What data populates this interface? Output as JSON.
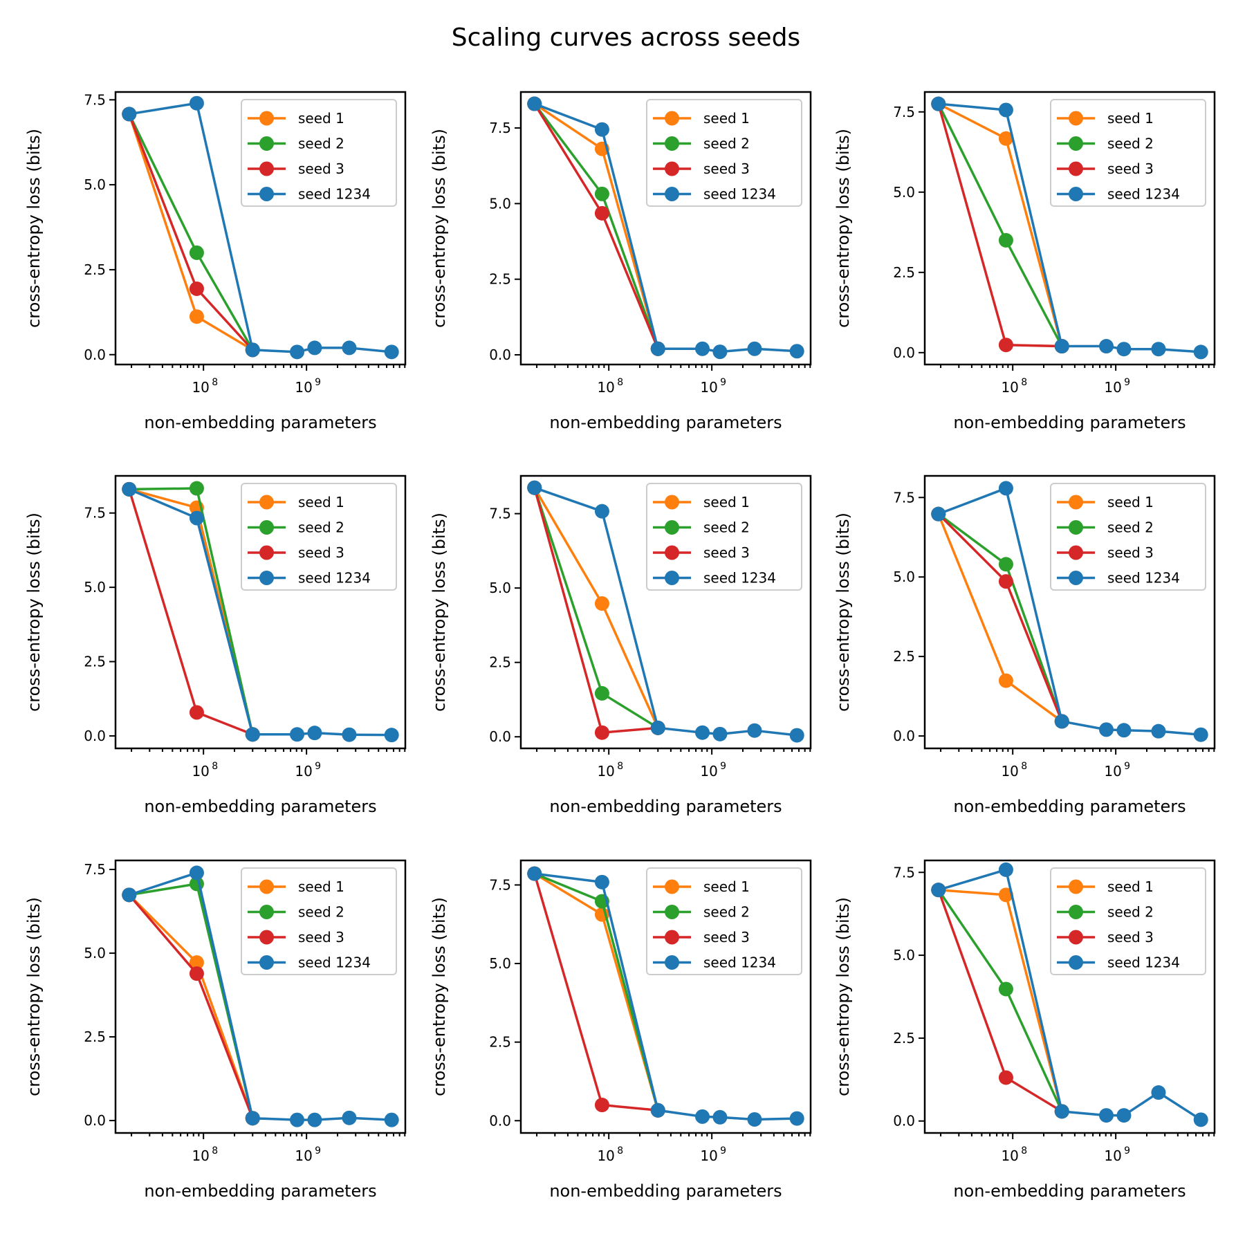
{
  "chart_data": {
    "type": "line",
    "title": "Scaling curves across seeds",
    "layout": "3x3 grid",
    "xscale": "log",
    "xlabel": "non-embedding parameters",
    "ylabel": "cross-entropy loss (bits)",
    "xlim": [
      14000000.0,
      9100000000.0
    ],
    "xtick_labels": [
      {
        "value": 100000000.0,
        "base": "10",
        "exp": "8"
      },
      {
        "value": 1000000000.0,
        "base": "10",
        "exp": "9"
      }
    ],
    "yticks": [
      0.0,
      2.5,
      5.0,
      7.5
    ],
    "ytick_labels": [
      "0.0",
      "2.5",
      "5.0",
      "7.5"
    ],
    "legend": {
      "placement": "upper right",
      "entries": [
        "seed 1",
        "seed 2",
        "seed 3",
        "seed 1234"
      ]
    },
    "colors": {
      "seed 1": "#ff7f0e",
      "seed 2": "#2ca02c",
      "seed 3": "#d62728",
      "seed 1234": "#1f77b4"
    },
    "x": [
      19000000.0,
      86000000.0,
      300000000.0,
      810000000.0,
      1200000000.0,
      2600000000.0,
      6700000000.0
    ],
    "subplots": [
      {
        "ylim": [
          -0.29,
          7.73
        ],
        "series": [
          {
            "name": "seed 1",
            "x_index": [
              0,
              1,
              2
            ],
            "values": [
              7.08,
              1.12,
              0.14
            ]
          },
          {
            "name": "seed 2",
            "x_index": [
              0,
              1,
              2
            ],
            "values": [
              7.08,
              3.0,
              0.14
            ]
          },
          {
            "name": "seed 3",
            "x_index": [
              0,
              1,
              2
            ],
            "values": [
              7.08,
              1.94,
              0.14
            ]
          },
          {
            "name": "seed 1234",
            "x_index": [
              0,
              1,
              2,
              3,
              4,
              5,
              6
            ],
            "values": [
              7.08,
              7.4,
              0.14,
              0.08,
              0.2,
              0.2,
              0.08
            ]
          }
        ]
      },
      {
        "ylim": [
          -0.32,
          8.69
        ],
        "series": [
          {
            "name": "seed 1",
            "x_index": [
              0,
              1,
              2
            ],
            "values": [
              8.3,
              6.81,
              0.2
            ]
          },
          {
            "name": "seed 2",
            "x_index": [
              0,
              1,
              2
            ],
            "values": [
              8.3,
              5.32,
              0.2
            ]
          },
          {
            "name": "seed 3",
            "x_index": [
              0,
              1,
              2
            ],
            "values": [
              8.3,
              4.68,
              0.2
            ]
          },
          {
            "name": "seed 1234",
            "x_index": [
              0,
              1,
              2,
              3,
              4,
              5,
              6
            ],
            "values": [
              8.3,
              7.45,
              0.2,
              0.2,
              0.1,
              0.2,
              0.12
            ]
          }
        ]
      },
      {
        "ylim": [
          -0.37,
          8.12
        ],
        "series": [
          {
            "name": "seed 1",
            "x_index": [
              0,
              1,
              2
            ],
            "values": [
              7.75,
              6.67,
              0.2
            ]
          },
          {
            "name": "seed 2",
            "x_index": [
              0,
              1,
              2
            ],
            "values": [
              7.75,
              3.5,
              0.2
            ]
          },
          {
            "name": "seed 3",
            "x_index": [
              0,
              1,
              2
            ],
            "values": [
              7.75,
              0.24,
              0.2
            ]
          },
          {
            "name": "seed 1234",
            "x_index": [
              0,
              1,
              2,
              3,
              4,
              5,
              6
            ],
            "values": [
              7.75,
              7.56,
              0.2,
              0.2,
              0.11,
              0.11,
              0.02
            ]
          }
        ]
      },
      {
        "ylim": [
          -0.42,
          8.75
        ],
        "series": [
          {
            "name": "seed 1",
            "x_index": [
              0,
              1,
              2
            ],
            "values": [
              8.3,
              7.68,
              0.05
            ]
          },
          {
            "name": "seed 2",
            "x_index": [
              0,
              1,
              2
            ],
            "values": [
              8.3,
              8.33,
              0.05
            ]
          },
          {
            "name": "seed 3",
            "x_index": [
              0,
              1,
              2
            ],
            "values": [
              8.3,
              0.79,
              0.05
            ]
          },
          {
            "name": "seed 1234",
            "x_index": [
              0,
              1,
              2,
              3,
              4,
              5,
              6
            ],
            "values": [
              8.3,
              7.33,
              0.05,
              0.05,
              0.1,
              0.04,
              0.03
            ]
          }
        ]
      },
      {
        "ylim": [
          -0.39,
          8.77
        ],
        "series": [
          {
            "name": "seed 1",
            "x_index": [
              0,
              1,
              2
            ],
            "values": [
              8.37,
              4.48,
              0.3
            ]
          },
          {
            "name": "seed 2",
            "x_index": [
              0,
              1,
              2
            ],
            "values": [
              8.37,
              1.46,
              0.3
            ]
          },
          {
            "name": "seed 3",
            "x_index": [
              0,
              1,
              2
            ],
            "values": [
              8.37,
              0.14,
              0.3
            ]
          },
          {
            "name": "seed 1234",
            "x_index": [
              0,
              1,
              2,
              3,
              4,
              5,
              6
            ],
            "values": [
              8.37,
              7.58,
              0.3,
              0.14,
              0.09,
              0.21,
              0.05
            ]
          }
        ]
      },
      {
        "ylim": [
          -0.39,
          8.18
        ],
        "series": [
          {
            "name": "seed 1",
            "x_index": [
              0,
              1,
              2
            ],
            "values": [
              6.98,
              1.74,
              0.46
            ]
          },
          {
            "name": "seed 2",
            "x_index": [
              0,
              1,
              2
            ],
            "values": [
              6.98,
              5.4,
              0.46
            ]
          },
          {
            "name": "seed 3",
            "x_index": [
              0,
              1,
              2
            ],
            "values": [
              6.98,
              4.86,
              0.46
            ]
          },
          {
            "name": "seed 1234",
            "x_index": [
              0,
              1,
              2,
              3,
              4,
              5,
              6
            ],
            "values": [
              6.98,
              7.79,
              0.46,
              0.2,
              0.18,
              0.15,
              0.04
            ]
          }
        ]
      },
      {
        "ylim": [
          -0.37,
          7.77
        ],
        "series": [
          {
            "name": "seed 1",
            "x_index": [
              0,
              1,
              2
            ],
            "values": [
              6.74,
              4.72,
              0.07
            ]
          },
          {
            "name": "seed 2",
            "x_index": [
              0,
              1,
              2
            ],
            "values": [
              6.74,
              7.07,
              0.07
            ]
          },
          {
            "name": "seed 3",
            "x_index": [
              0,
              1,
              2
            ],
            "values": [
              6.74,
              4.39,
              0.07
            ]
          },
          {
            "name": "seed 1234",
            "x_index": [
              0,
              1,
              2,
              3,
              4,
              5,
              6
            ],
            "values": [
              6.74,
              7.4,
              0.07,
              0.02,
              0.02,
              0.08,
              0.02
            ]
          }
        ]
      },
      {
        "ylim": [
          -0.39,
          8.28
        ],
        "series": [
          {
            "name": "seed 1",
            "x_index": [
              0,
              1,
              2
            ],
            "values": [
              7.86,
              6.56,
              0.33
            ]
          },
          {
            "name": "seed 2",
            "x_index": [
              0,
              1,
              2
            ],
            "values": [
              7.86,
              6.98,
              0.33
            ]
          },
          {
            "name": "seed 3",
            "x_index": [
              0,
              1,
              2
            ],
            "values": [
              7.86,
              0.5,
              0.33
            ]
          },
          {
            "name": "seed 1234",
            "x_index": [
              0,
              1,
              2,
              3,
              4,
              5,
              6
            ],
            "values": [
              7.86,
              7.59,
              0.33,
              0.13,
              0.11,
              0.04,
              0.07
            ]
          }
        ]
      },
      {
        "ylim": [
          -0.36,
          7.86
        ],
        "series": [
          {
            "name": "seed 1",
            "x_index": [
              0,
              1,
              2
            ],
            "values": [
              6.97,
              6.82,
              0.29
            ]
          },
          {
            "name": "seed 2",
            "x_index": [
              0,
              1,
              2
            ],
            "values": [
              6.97,
              3.98,
              0.29
            ]
          },
          {
            "name": "seed 3",
            "x_index": [
              0,
              1,
              2
            ],
            "values": [
              6.97,
              1.31,
              0.29
            ]
          },
          {
            "name": "seed 1234",
            "x_index": [
              0,
              1,
              2,
              3,
              4,
              5,
              6
            ],
            "values": [
              6.97,
              7.58,
              0.29,
              0.17,
              0.17,
              0.86,
              0.04
            ]
          }
        ]
      }
    ]
  }
}
